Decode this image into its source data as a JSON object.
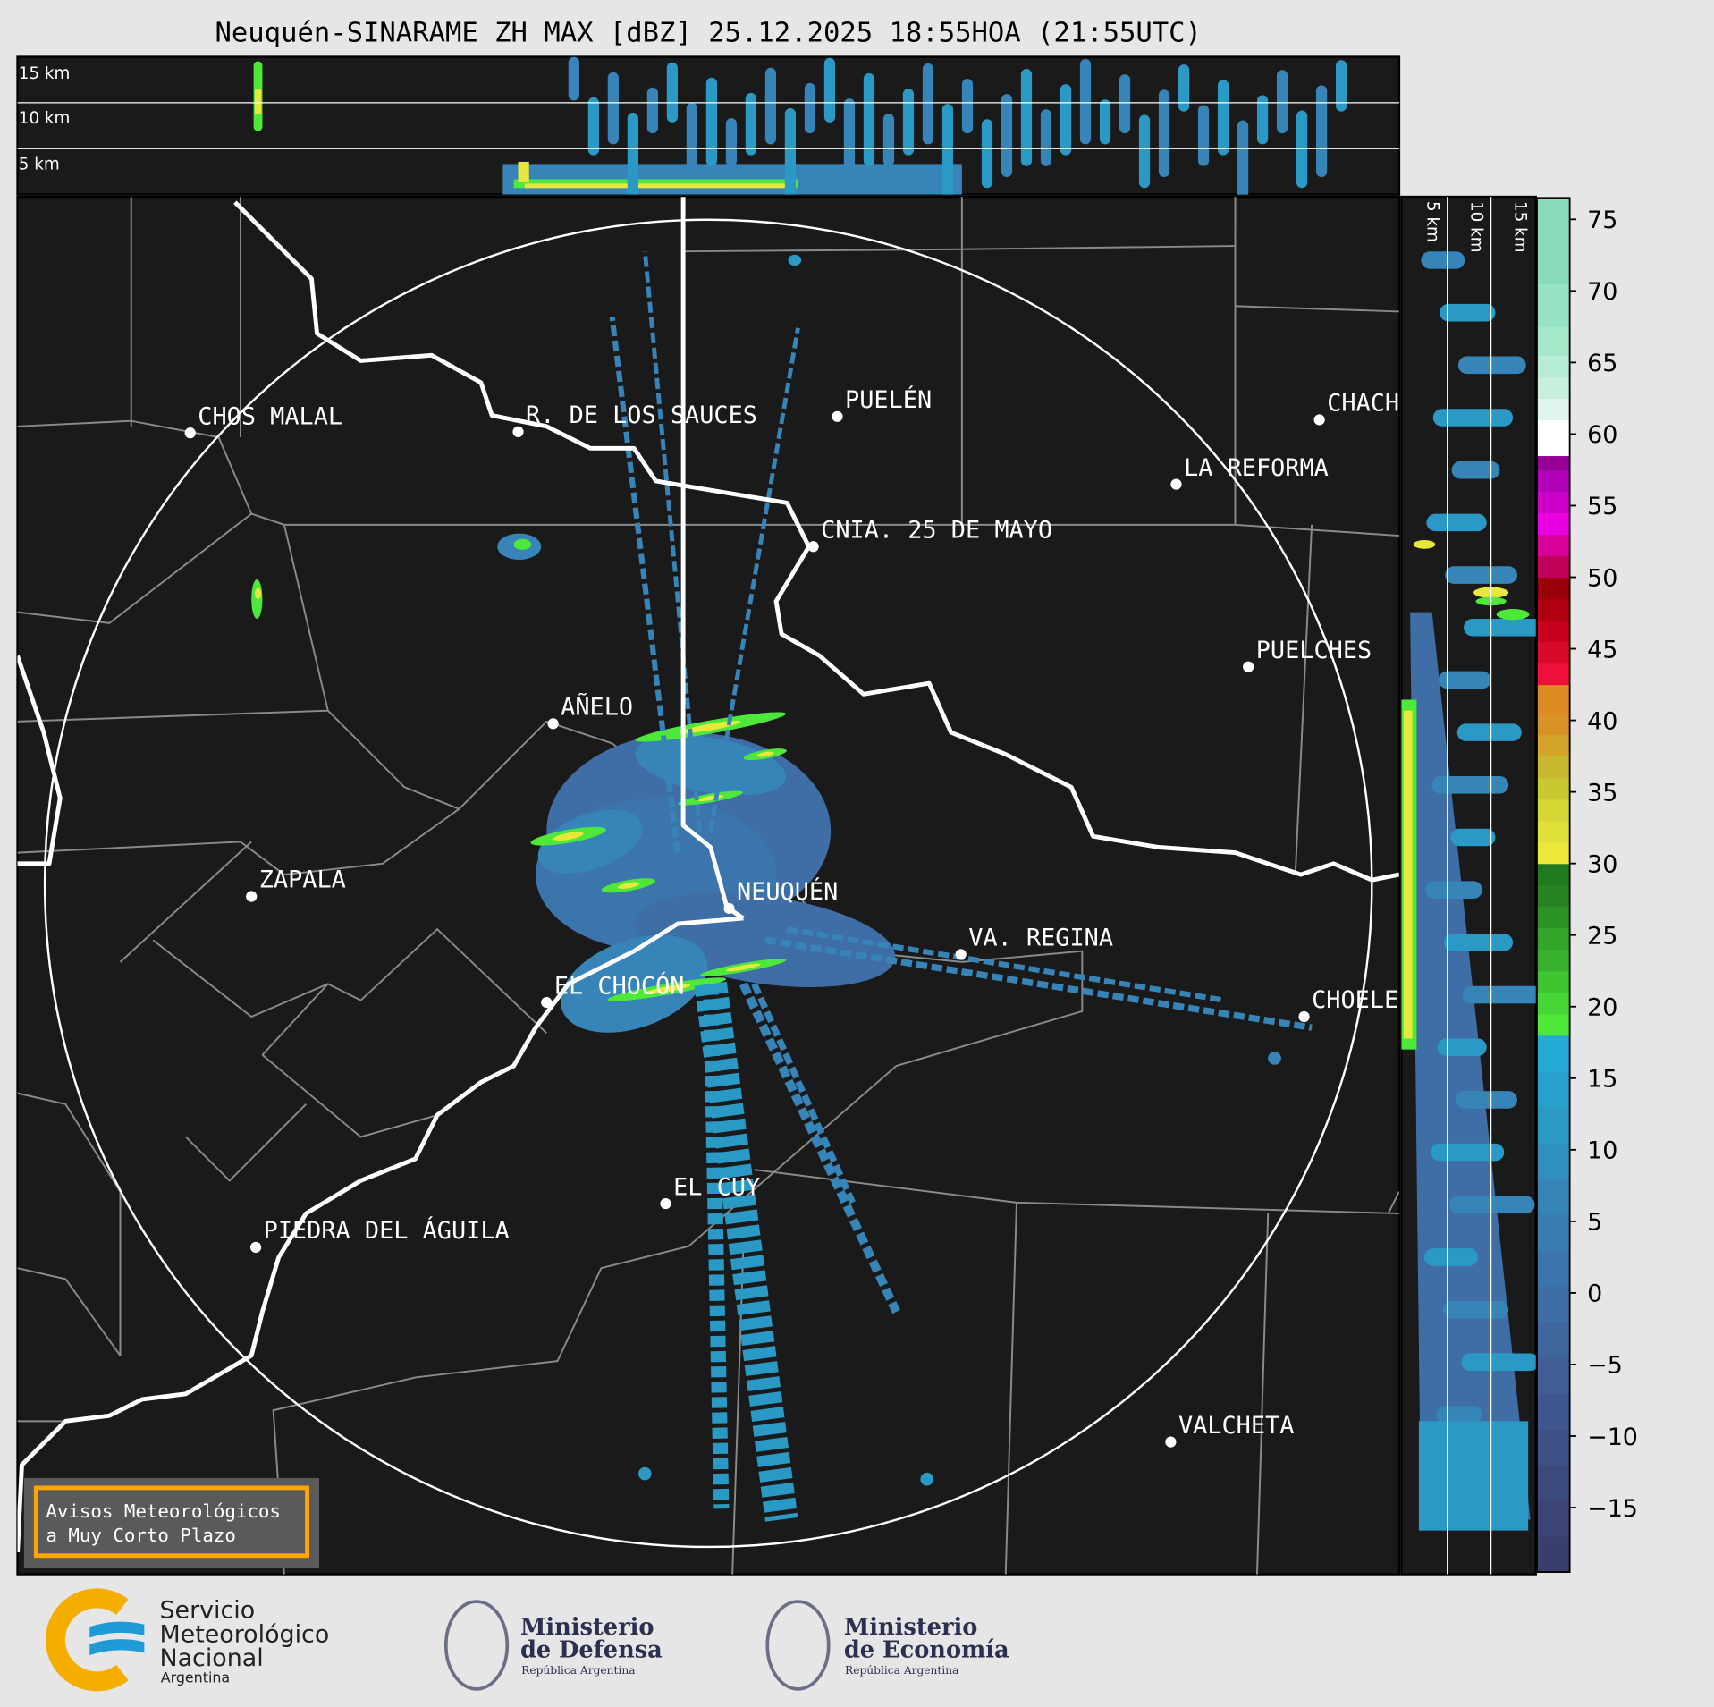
{
  "title": "Neuquén-SINARAME ZH MAX [dBZ] 25.12.2025 18:55HOA (21:55UTC)",
  "top_panel": {
    "height_labels": [
      "15 km",
      "10 km",
      "5 km"
    ]
  },
  "side_panel": {
    "height_labels": [
      "5 km",
      "10 km",
      "15 km"
    ]
  },
  "cities": [
    "CHOS MALAL",
    "R. DE LOS SAUCES",
    "PUELÉN",
    "CHACH",
    "LA REFORMA",
    "CNIA. 25 DE MAYO",
    "PUELCHES",
    "AÑELO",
    "ZAPALA",
    "NEUQUÉN",
    "VA. REGINA",
    "EL CHOCÓN",
    "CHOELE",
    "EL CUY",
    "PIEDRA DEL ÁGUILA",
    "VALCHETA"
  ],
  "warning_box": {
    "line1": "Avisos Meteorológicos",
    "line2": "a Muy Corto Plazo",
    "border_color": "#ffa500"
  },
  "colorbar": {
    "unit": "dBZ",
    "ticks": [
      75,
      70,
      65,
      60,
      55,
      50,
      45,
      40,
      35,
      30,
      25,
      20,
      15,
      10,
      5,
      0,
      -5,
      -10,
      -15
    ],
    "tick_labels": [
      "75",
      "70",
      "65",
      "60",
      "55",
      "50",
      "45",
      "40",
      "35",
      "30",
      "25",
      "20",
      "15",
      "10",
      "5",
      "0",
      "−5",
      "−10",
      "−15"
    ],
    "range": [
      -19.5,
      76.5
    ],
    "bins": [
      [
        -19.5,
        -17,
        "#3a3e6c"
      ],
      [
        -17,
        -14.5,
        "#3b4474"
      ],
      [
        -14.5,
        -12,
        "#3c4a7e"
      ],
      [
        -12,
        -9.5,
        "#3e5186"
      ],
      [
        -9.5,
        -7,
        "#3f578e"
      ],
      [
        -7,
        -4.5,
        "#3f5f96"
      ],
      [
        -4.5,
        -2,
        "#3f669d"
      ],
      [
        -2,
        0.5,
        "#3e6ea5"
      ],
      [
        0.5,
        3,
        "#3c75ab"
      ],
      [
        3,
        5.5,
        "#3a7db1"
      ],
      [
        5.5,
        8,
        "#3785b8"
      ],
      [
        8,
        10.5,
        "#3190c0"
      ],
      [
        10.5,
        13,
        "#2b99c6"
      ],
      [
        13,
        15.5,
        "#28a1cc"
      ],
      [
        15.5,
        18,
        "#25aad6"
      ],
      [
        18,
        19.5,
        "#4ee83a"
      ],
      [
        19.5,
        21,
        "#46d636"
      ],
      [
        21,
        22.5,
        "#3fc432"
      ],
      [
        22.5,
        24,
        "#38b22d"
      ],
      [
        24,
        25.5,
        "#33a52a"
      ],
      [
        25.5,
        27,
        "#2c9426"
      ],
      [
        27,
        28.5,
        "#268522"
      ],
      [
        28.5,
        30,
        "#217a1e"
      ],
      [
        30,
        31.5,
        "#ece83a"
      ],
      [
        31.5,
        33,
        "#e0e03a"
      ],
      [
        33,
        34.5,
        "#d4d636"
      ],
      [
        34.5,
        36,
        "#c8c832"
      ],
      [
        36,
        37.5,
        "#c8b830"
      ],
      [
        37.5,
        39,
        "#d4a52a"
      ],
      [
        39,
        40.5,
        "#d89226"
      ],
      [
        40.5,
        42.5,
        "#dc8a22"
      ],
      [
        42.5,
        44,
        "#ee1038"
      ],
      [
        44,
        45.5,
        "#d80a2a"
      ],
      [
        45.5,
        47,
        "#c8001e"
      ],
      [
        47,
        48.5,
        "#b00010"
      ],
      [
        48.5,
        50,
        "#9a0008"
      ],
      [
        50,
        51.5,
        "#c0005a"
      ],
      [
        51.5,
        53,
        "#d8009a"
      ],
      [
        53,
        54.5,
        "#e800e0"
      ],
      [
        54.5,
        56,
        "#cc00c8"
      ],
      [
        56,
        57.5,
        "#b000b8"
      ],
      [
        57.5,
        58.5,
        "#980098"
      ],
      [
        58.5,
        61,
        "#ffffff"
      ],
      [
        61,
        62.5,
        "#e0f5ec"
      ],
      [
        62.5,
        64,
        "#c8efdc"
      ],
      [
        64,
        65.5,
        "#b6ebd4"
      ],
      [
        65.5,
        67.5,
        "#a6e7ca"
      ],
      [
        67.5,
        70.5,
        "#96e2c4"
      ],
      [
        70.5,
        76.5,
        "#88dcbc"
      ]
    ]
  },
  "logos": {
    "smn": [
      "Servicio",
      "Meteorológico",
      "Nacional",
      "Argentina"
    ],
    "defensa": [
      "Ministerio",
      "de Defensa",
      "República Argentina"
    ],
    "economia": [
      "Ministerio",
      "de Economía",
      "República Argentina"
    ]
  },
  "colors": {
    "map_bg": "#1a1a1a",
    "page_bg": "#e6e6e6",
    "province_border": "#ffffff",
    "department_border": "#8a8a8a",
    "logo_navy": "#2b3050",
    "smn_yellow": "#f5ad00",
    "smn_blue": "#1e9ad6"
  }
}
